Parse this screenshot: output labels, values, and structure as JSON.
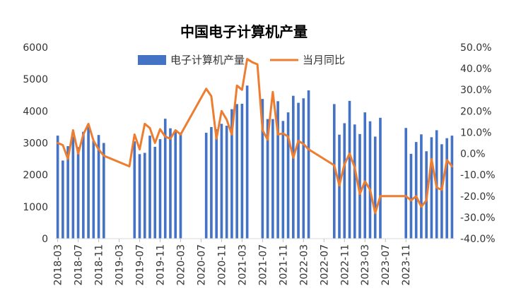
{
  "chart_data": {
    "type": "bar",
    "title": "中国电子计算机产量",
    "y_left": {
      "min": 0,
      "max": 6000,
      "step": 1000,
      "ticks": [
        "0",
        "1000",
        "2000",
        "3000",
        "4000",
        "5000",
        "6000"
      ]
    },
    "y_right": {
      "min": -40,
      "max": 50,
      "step": 10,
      "ticks": [
        "-40.0%",
        "-30.0%",
        "-20.0%",
        "-10.0%",
        "0.0%",
        "10.0%",
        "20.0%",
        "30.0%",
        "40.0%",
        "50.0%"
      ]
    },
    "x_labels": [
      "2018-03",
      "2018-07",
      "2018-11",
      "2019-03",
      "2019-07",
      "2019-11",
      "2020-03",
      "2020-07",
      "2020-11",
      "2021-03",
      "2021-07",
      "2021-11",
      "2022-03",
      "2022-07",
      "2022-11",
      "2023-03",
      "2023-07",
      "2023-11"
    ],
    "legend_position": "top",
    "colors": {
      "bar": "#4472C4",
      "line": "#ED7D31"
    },
    "series": [
      {
        "name": "电子计算机产量",
        "type": "bar",
        "axis": "left",
        "values": [
          3230,
          2450,
          2900,
          3200,
          2870,
          3350,
          3520,
          3070,
          3250,
          3000,
          null,
          null,
          null,
          null,
          null,
          3050,
          2650,
          2690,
          3230,
          2880,
          3120,
          3760,
          3460,
          3380,
          3330,
          null,
          null,
          null,
          null,
          3320,
          3500,
          3430,
          3600,
          3540,
          4060,
          4220,
          4230,
          4800,
          null,
          null,
          4380,
          3750,
          3750,
          4310,
          3690,
          3960,
          4480,
          4260,
          4400,
          4650,
          null,
          null,
          null,
          null,
          4220,
          3260,
          3620,
          4320,
          3580,
          3280,
          3960,
          3680,
          3200,
          3790,
          null,
          null,
          null,
          null,
          3470,
          2660,
          3030,
          3270,
          2740,
          3180,
          3400,
          2960,
          3150,
          3230
        ]
      },
      {
        "name": "当月同比",
        "type": "line",
        "axis": "right",
        "values": [
          5,
          4,
          -2.5,
          11,
          0,
          9,
          14,
          6,
          2,
          -1,
          null,
          null,
          null,
          null,
          -6,
          9,
          2,
          14,
          12,
          5,
          11.5,
          8,
          7,
          11,
          9,
          null,
          null,
          null,
          null,
          30.5,
          27,
          7,
          20,
          16,
          9,
          32,
          30,
          44.5,
          43,
          42,
          11,
          6.5,
          29,
          9,
          9.5,
          8,
          -2,
          6,
          4.5,
          2,
          null,
          null,
          null,
          null,
          -5.5,
          -15,
          -5,
          0,
          -6.5,
          -19,
          -13,
          -17,
          -28,
          -20,
          null,
          null,
          null,
          null,
          -20,
          -22,
          -20,
          -25,
          -22,
          -2.5,
          -16,
          -17,
          -3,
          -6
        ]
      }
    ]
  }
}
